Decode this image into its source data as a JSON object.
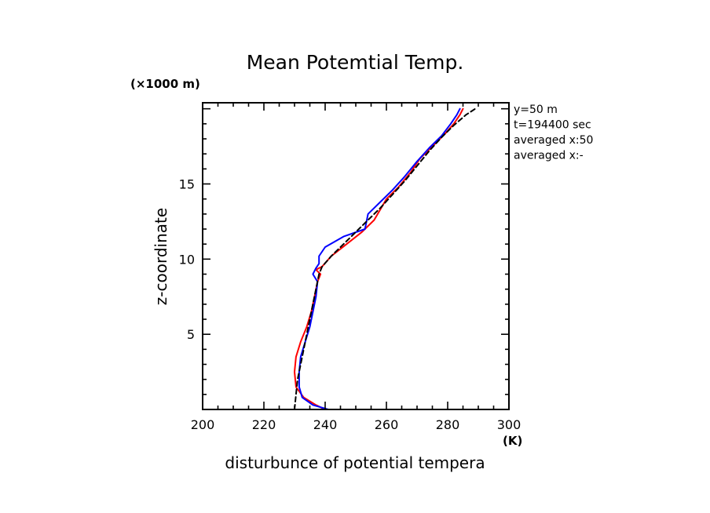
{
  "chart_data": {
    "type": "line",
    "title": "Mean Potemtial Temp.",
    "xlabel": "disturbunce of potential tempera",
    "ylabel": "z-coordinate",
    "x_unit": "(K)",
    "y_unit": "(×1000 m)",
    "xlim": [
      200,
      300
    ],
    "ylim": [
      0,
      20.4
    ],
    "xticks": [
      200,
      220,
      240,
      260,
      280,
      300
    ],
    "yticks": [
      5,
      10,
      15
    ],
    "annotations": [
      "y=50 m",
      "t=194400 sec",
      "averaged  x:50",
      "averaged  x:-"
    ],
    "grid": false,
    "series": [
      {
        "color": "#ff0000",
        "style": "solid",
        "points": [
          [
            240,
            0
          ],
          [
            237,
            0.3
          ],
          [
            233,
            0.8
          ],
          [
            230.5,
            1.5
          ],
          [
            230,
            2.5
          ],
          [
            230.5,
            3.5
          ],
          [
            232,
            4.5
          ],
          [
            234,
            5.5
          ],
          [
            235.5,
            6.5
          ],
          [
            236.5,
            7.5
          ],
          [
            237.5,
            8.5
          ],
          [
            238.5,
            9.0
          ],
          [
            237,
            9.3
          ],
          [
            239,
            9.5
          ],
          [
            242,
            10.2
          ],
          [
            247,
            11.0
          ],
          [
            252,
            11.8
          ],
          [
            256,
            12.6
          ],
          [
            258,
            13.3
          ],
          [
            260,
            14.0
          ],
          [
            264,
            14.8
          ],
          [
            268,
            15.8
          ],
          [
            271,
            16.7
          ],
          [
            275,
            17.5
          ],
          [
            279,
            18.3
          ],
          [
            282,
            19.0
          ],
          [
            284,
            19.6
          ],
          [
            285,
            20.0
          ]
        ]
      },
      {
        "color": "#0000ff",
        "style": "solid",
        "points": [
          [
            241,
            0
          ],
          [
            236,
            0.3
          ],
          [
            232.5,
            0.8
          ],
          [
            231.5,
            1.5
          ],
          [
            231.5,
            2.5
          ],
          [
            232,
            3.5
          ],
          [
            233.5,
            4.5
          ],
          [
            235,
            5.5
          ],
          [
            236,
            6.5
          ],
          [
            237,
            7.5
          ],
          [
            237.5,
            8.5
          ],
          [
            236,
            9.0
          ],
          [
            237,
            9.4
          ],
          [
            238,
            9.7
          ],
          [
            238,
            10.2
          ],
          [
            240,
            10.8
          ],
          [
            246,
            11.5
          ],
          [
            253,
            12.0
          ],
          [
            254,
            13.0
          ],
          [
            258,
            13.8
          ],
          [
            262,
            14.6
          ],
          [
            266,
            15.5
          ],
          [
            270,
            16.5
          ],
          [
            274,
            17.4
          ],
          [
            278,
            18.2
          ],
          [
            281,
            19.0
          ],
          [
            283,
            19.6
          ],
          [
            284,
            20.0
          ]
        ]
      },
      {
        "color": "#000000",
        "style": "dashed",
        "points": [
          [
            230,
            0
          ],
          [
            230.5,
            1
          ],
          [
            231,
            2
          ],
          [
            232,
            3
          ],
          [
            233,
            4
          ],
          [
            234,
            5
          ],
          [
            235,
            6
          ],
          [
            236,
            7
          ],
          [
            237,
            8
          ],
          [
            238,
            9
          ],
          [
            239,
            9.5
          ],
          [
            242,
            10.2
          ],
          [
            246,
            11.0
          ],
          [
            250,
            11.8
          ],
          [
            254,
            12.6
          ],
          [
            258,
            13.4
          ],
          [
            262,
            14.3
          ],
          [
            266,
            15.2
          ],
          [
            270,
            16.2
          ],
          [
            274,
            17.2
          ],
          [
            278,
            18.1
          ],
          [
            282,
            18.9
          ],
          [
            286,
            19.6
          ],
          [
            289,
            20.0
          ]
        ]
      }
    ]
  }
}
